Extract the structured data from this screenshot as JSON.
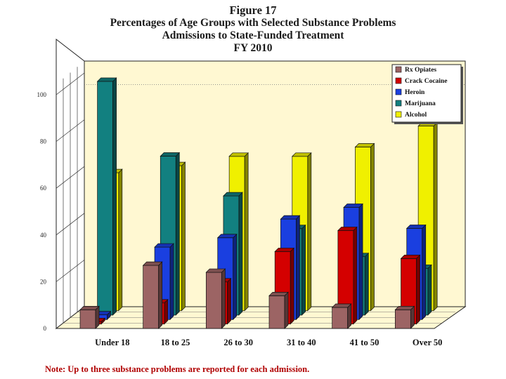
{
  "chart_data": {
    "type": "bar",
    "title_lines": [
      "Figure 17",
      "Percentages of Age Groups with Selected Substance Problems",
      "Admissions to State-Funded Treatment",
      "FY 2010"
    ],
    "categories": [
      "Under 18",
      "18 to 25",
      "26 to 30",
      "31 to 40",
      "41 to 50",
      "Over 50"
    ],
    "series": [
      {
        "name": "Rx Opiates",
        "color": "#9c6464",
        "values": [
          8,
          27,
          24,
          14,
          9,
          8
        ]
      },
      {
        "name": "Crack Cocaine",
        "color": "#d40000",
        "values": [
          1,
          9,
          18,
          31,
          40,
          28
        ]
      },
      {
        "name": "Heroin",
        "color": "#1a3fe0",
        "values": [
          2,
          31,
          35,
          43,
          48,
          39
        ]
      },
      {
        "name": "Marijuana",
        "color": "#128080",
        "values": [
          100,
          68,
          51,
          37,
          25,
          20
        ]
      },
      {
        "name": "Alcohol",
        "color": "#f0f000",
        "values": [
          59,
          62,
          66,
          66,
          70,
          79
        ]
      }
    ],
    "yticks": [
      "0",
      "20",
      "40",
      "60",
      "80",
      "100"
    ],
    "ylim": [
      0,
      100
    ],
    "grid": false,
    "legend_position": "top-right",
    "xlabel": "",
    "ylabel": "",
    "note": "Note: Up to three substance problems are reported for each admission."
  }
}
